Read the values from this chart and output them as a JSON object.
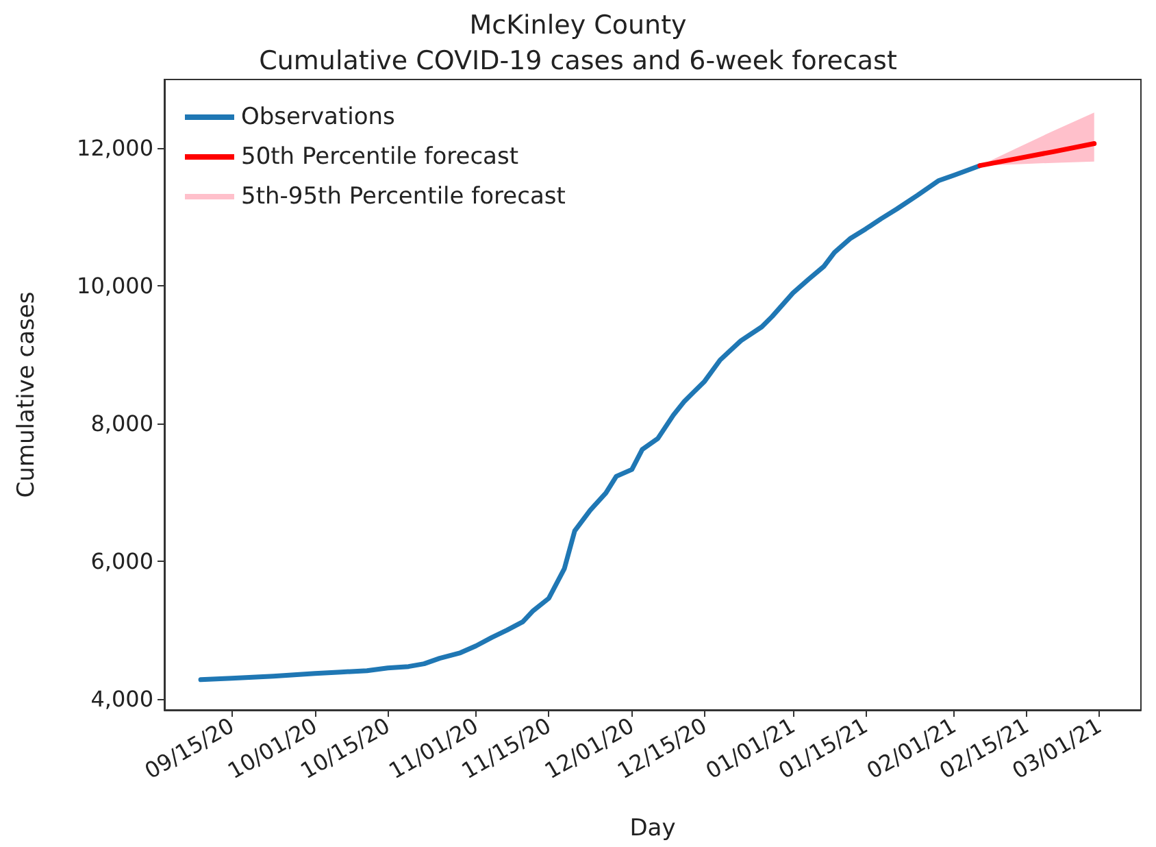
{
  "chart_data": {
    "type": "line",
    "title": "McKinley County",
    "subtitle": "Cumulative COVID-19 cases and 6-week forecast",
    "xlabel": "Day",
    "ylabel": "Cumulative cases",
    "xlim": [
      "2020-09-02",
      "2021-03-09"
    ],
    "ylim": [
      3840,
      12990
    ],
    "xticks": [
      {
        "value": "2020-09-15",
        "label": "09/15/20"
      },
      {
        "value": "2020-10-01",
        "label": "10/01/20"
      },
      {
        "value": "2020-10-15",
        "label": "10/15/20"
      },
      {
        "value": "2020-11-01",
        "label": "11/01/20"
      },
      {
        "value": "2020-11-15",
        "label": "11/15/20"
      },
      {
        "value": "2020-12-01",
        "label": "12/01/20"
      },
      {
        "value": "2020-12-15",
        "label": "12/15/20"
      },
      {
        "value": "2021-01-01",
        "label": "01/01/21"
      },
      {
        "value": "2021-01-15",
        "label": "01/15/21"
      },
      {
        "value": "2021-02-01",
        "label": "02/01/21"
      },
      {
        "value": "2021-02-15",
        "label": "02/15/21"
      },
      {
        "value": "2021-03-01",
        "label": "03/01/21"
      }
    ],
    "yticks": [
      {
        "value": 4000,
        "label": "4,000"
      },
      {
        "value": 6000,
        "label": "6,000"
      },
      {
        "value": 8000,
        "label": "8,000"
      },
      {
        "value": 10000,
        "label": "10,000"
      },
      {
        "value": 12000,
        "label": "12,000"
      }
    ],
    "grid": false,
    "legend": "top left",
    "marker": "none",
    "line_style": "solid",
    "series": [
      {
        "name": "Observations",
        "color": "#1f77b4",
        "x": [
          "2020-09-09",
          "2020-09-15",
          "2020-09-23",
          "2020-10-01",
          "2020-10-06",
          "2020-10-11",
          "2020-10-15",
          "2020-10-19",
          "2020-10-22",
          "2020-10-25",
          "2020-10-29",
          "2020-11-01",
          "2020-11-04",
          "2020-11-07",
          "2020-11-10",
          "2020-11-12",
          "2020-11-15",
          "2020-11-18",
          "2020-11-20",
          "2020-11-23",
          "2020-11-26",
          "2020-11-28",
          "2020-12-01",
          "2020-12-03",
          "2020-12-06",
          "2020-12-09",
          "2020-12-11",
          "2020-12-15",
          "2020-12-18",
          "2020-12-22",
          "2020-12-26",
          "2020-12-28",
          "2021-01-01",
          "2021-01-04",
          "2021-01-07",
          "2021-01-09",
          "2021-01-12",
          "2021-01-15",
          "2021-01-18",
          "2021-01-21",
          "2021-01-25",
          "2021-01-29",
          "2021-02-01",
          "2021-02-06"
        ],
        "values": [
          4280,
          4300,
          4330,
          4370,
          4390,
          4410,
          4450,
          4470,
          4510,
          4590,
          4670,
          4770,
          4890,
          5000,
          5120,
          5280,
          5460,
          5890,
          6440,
          6740,
          6990,
          7230,
          7330,
          7620,
          7780,
          8120,
          8310,
          8610,
          8920,
          9200,
          9400,
          9550,
          9890,
          10090,
          10280,
          10480,
          10680,
          10820,
          10970,
          11110,
          11310,
          11520,
          11600,
          11740
        ]
      },
      {
        "name": "50th Percentile forecast",
        "color": "#ff0000",
        "x": [
          "2021-02-06",
          "2021-02-13",
          "2021-02-20",
          "2021-02-28"
        ],
        "values": [
          11740,
          11840,
          11940,
          12060
        ],
        "lower": [
          11740,
          11760,
          11780,
          11800
        ],
        "upper": [
          11740,
          11990,
          12240,
          12510
        ]
      },
      {
        "name": "5th-95th Percentile forecast",
        "color": "#ffc0cb",
        "type": "area"
      }
    ]
  }
}
